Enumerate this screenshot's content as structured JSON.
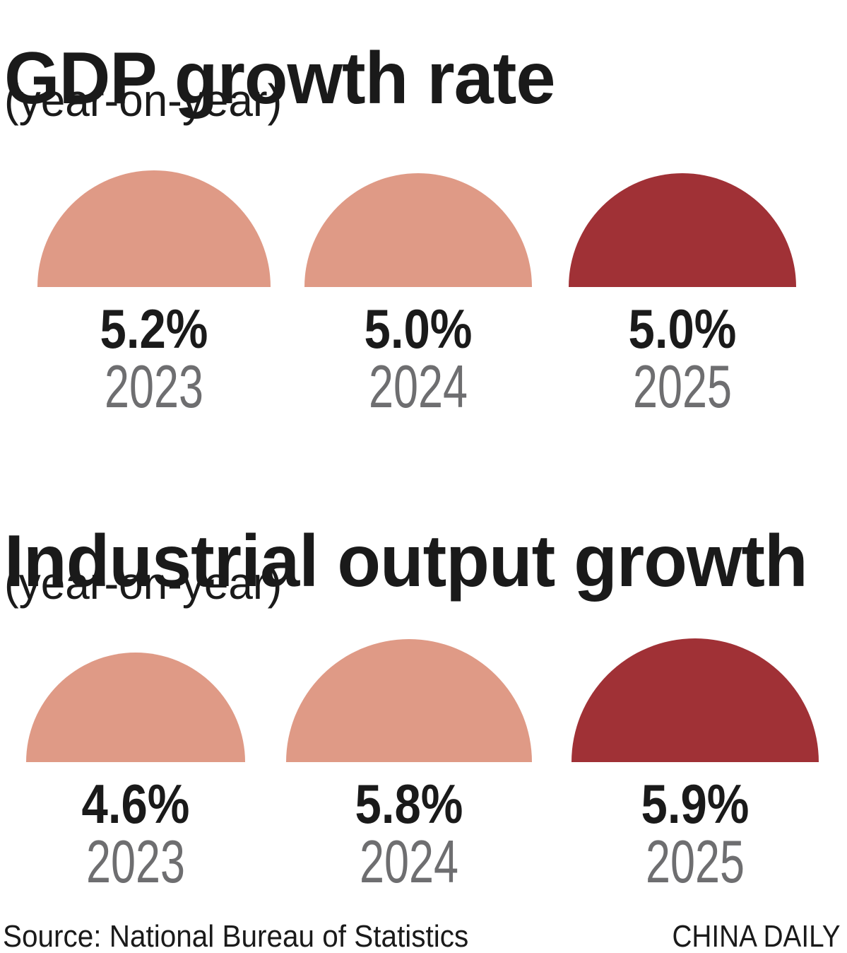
{
  "colors": {
    "salmon": "#DF9A86",
    "dark_red": "#A03136",
    "text_dark": "#1A1A1A",
    "text_gray": "#6E6E70",
    "background": "#FFFFFF"
  },
  "chart_data": [
    {
      "type": "bar",
      "shape": "semicircle-pictogram",
      "title": "GDP growth rate",
      "subtitle": "(year-on-year)",
      "unit": "%",
      "categories": [
        "2023",
        "2024",
        "2025"
      ],
      "values": [
        5.2,
        5.0,
        5.0
      ],
      "value_labels": [
        "5.2%",
        "5.0%",
        "5.0%"
      ],
      "point_colors": [
        "#DF9A86",
        "#DF9A86",
        "#A03136"
      ],
      "layout_hint": "three semicircles in a row, radius scales with sqrt(value), highlight color on 2025"
    },
    {
      "type": "bar",
      "shape": "semicircle-pictogram",
      "title": "Industrial output growth",
      "subtitle": "(year-on-year)",
      "unit": "%",
      "categories": [
        "2023",
        "2024",
        "2025"
      ],
      "values": [
        4.6,
        5.8,
        5.9
      ],
      "value_labels": [
        "4.6%",
        "5.8%",
        "5.9%"
      ],
      "point_colors": [
        "#DF9A86",
        "#DF9A86",
        "#A03136"
      ],
      "layout_hint": "three semicircles in a row, radius scales with sqrt(value), highlight color on 2025"
    }
  ],
  "footer": {
    "source": "Source: National Bureau of Statistics",
    "credit": "CHINA DAILY"
  }
}
